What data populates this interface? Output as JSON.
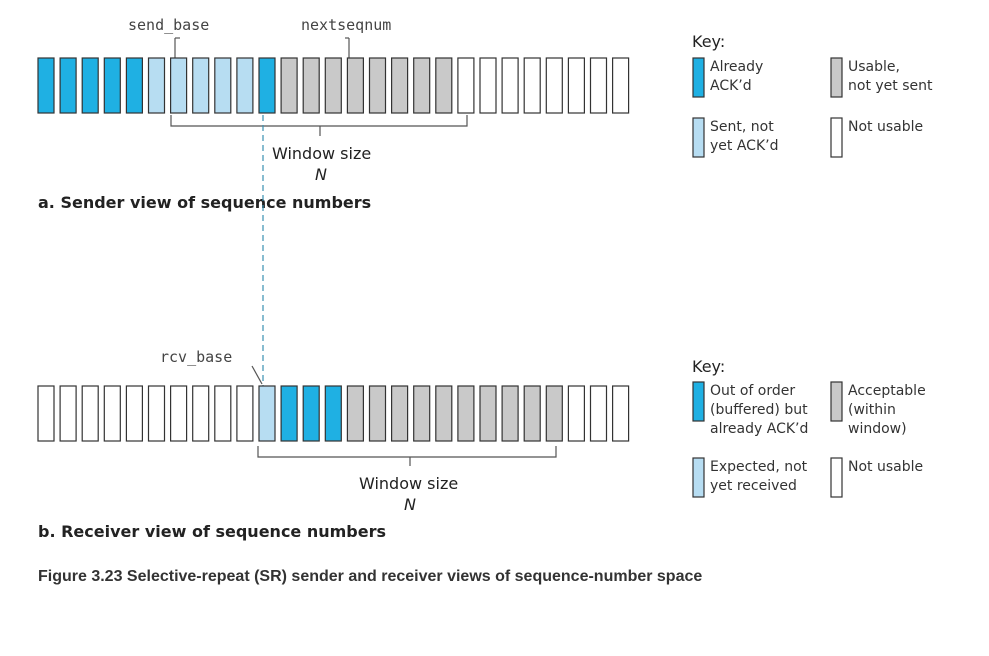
{
  "colors": {
    "acked": "#1fb0e3",
    "sent_not_acked": "#b7ddf2",
    "usable": "#c9c9c9",
    "not_usable": "#ffffff",
    "out_of_order_acked": "#1fb0e3",
    "expected": "#b7ddf2",
    "acceptable": "#c9c9c9"
  },
  "sender": {
    "send_base_label": "send_base",
    "nextseqnum_label": "nextseqnum",
    "cells": [
      "acked",
      "acked",
      "acked",
      "acked",
      "acked",
      "sent_not_acked",
      "sent_not_acked",
      "sent_not_acked",
      "sent_not_acked",
      "sent_not_acked",
      "acked",
      "usable",
      "usable",
      "usable",
      "usable",
      "usable",
      "usable",
      "usable",
      "usable",
      "not_usable",
      "not_usable",
      "not_usable",
      "not_usable",
      "not_usable",
      "not_usable",
      "not_usable",
      "not_usable"
    ],
    "window_label": "Window size",
    "window_n": "N",
    "section_title": "a. Sender view of sequence numbers",
    "key": {
      "title": "Key:",
      "items": [
        {
          "color": "acked",
          "lines": [
            "Already",
            "ACK’d"
          ]
        },
        {
          "color": "usable",
          "lines": [
            "Usable,",
            "not yet sent"
          ]
        },
        {
          "color": "sent_not_acked",
          "lines": [
            "Sent, not",
            "yet ACK’d"
          ]
        },
        {
          "color": "not_usable",
          "lines": [
            "Not usable"
          ]
        }
      ]
    }
  },
  "receiver": {
    "rcv_base_label": "rcv_base",
    "cells": [
      "not_usable",
      "not_usable",
      "not_usable",
      "not_usable",
      "not_usable",
      "not_usable",
      "not_usable",
      "not_usable",
      "not_usable",
      "not_usable",
      "expected",
      "out_of_order_acked",
      "out_of_order_acked",
      "out_of_order_acked",
      "acceptable",
      "acceptable",
      "acceptable",
      "acceptable",
      "acceptable",
      "acceptable",
      "acceptable",
      "acceptable",
      "acceptable",
      "acceptable",
      "not_usable",
      "not_usable",
      "not_usable"
    ],
    "window_label": "Window size",
    "window_n": "N",
    "section_title": "b. Receiver view of sequence numbers",
    "key": {
      "title": "Key:",
      "items": [
        {
          "color": "out_of_order_acked",
          "lines": [
            "Out of order",
            "(buffered) but",
            "already ACK’d"
          ]
        },
        {
          "color": "acceptable",
          "lines": [
            "Acceptable",
            "(within",
            "window)"
          ]
        },
        {
          "color": "expected",
          "lines": [
            "Expected, not",
            "yet received"
          ]
        },
        {
          "color": "not_usable",
          "lines": [
            "Not usable"
          ]
        }
      ]
    }
  },
  "caption": "Figure 3.23 Selective-repeat (SR) sender and receiver views of sequence-number space"
}
